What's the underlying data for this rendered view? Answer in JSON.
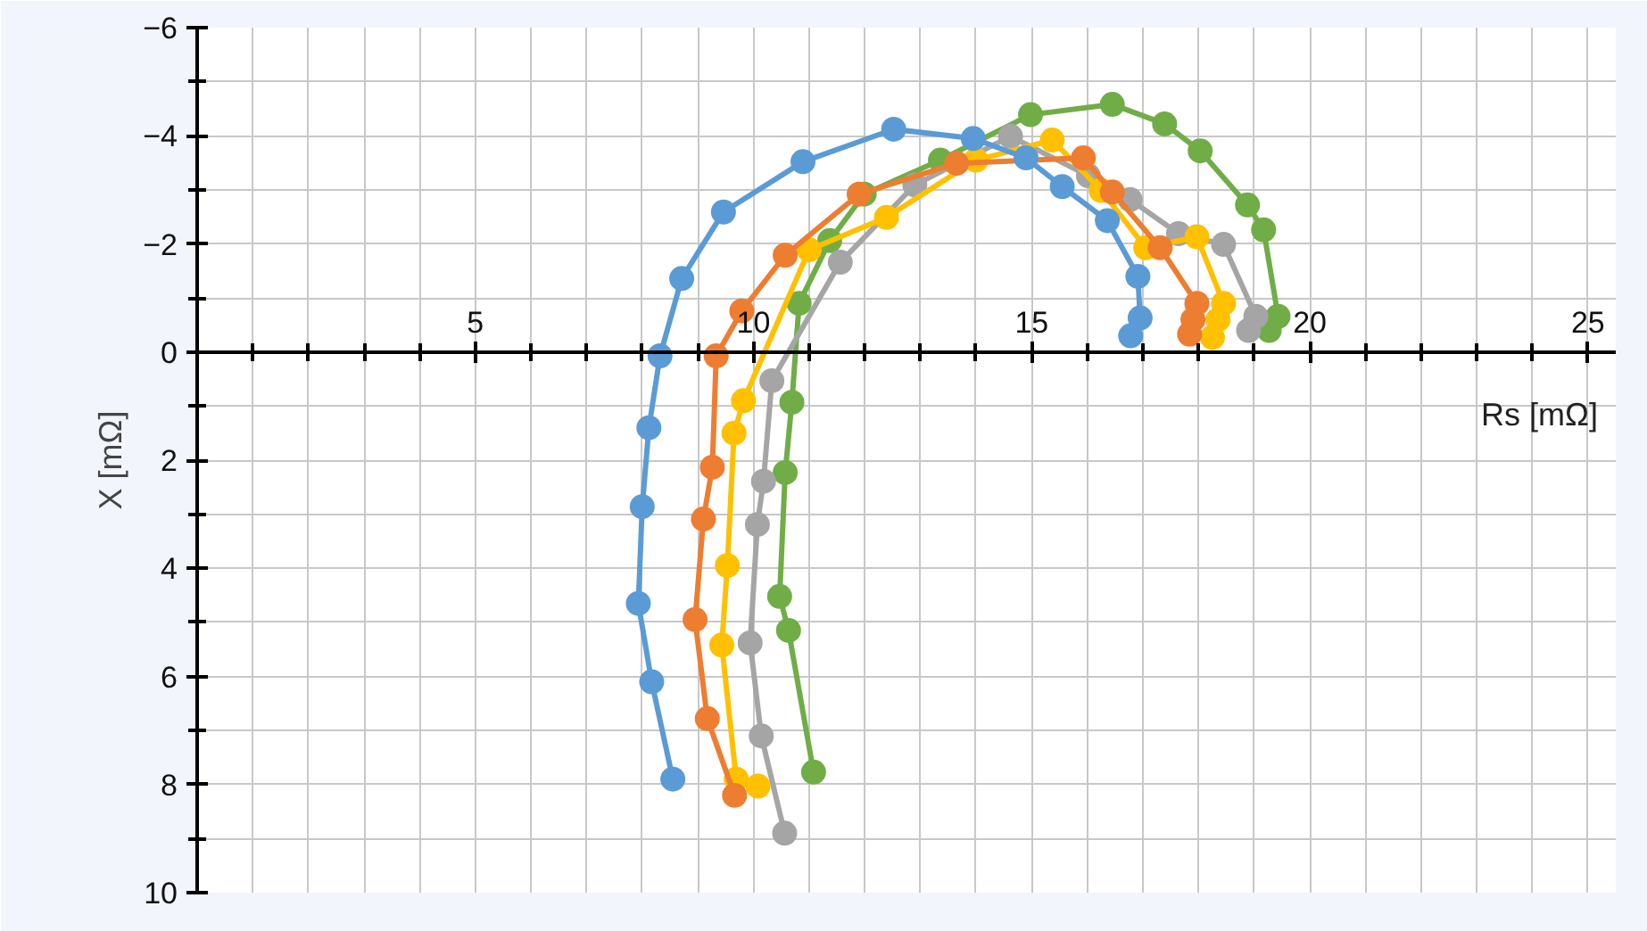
{
  "chart_data": {
    "type": "line",
    "xlabel": "Rs [mΩ]",
    "ylabel": "X [mΩ]",
    "xlim": [
      0,
      25.5
    ],
    "ylim": [
      10,
      -6
    ],
    "xticks": [
      5,
      10,
      15,
      20,
      25
    ],
    "yticks": [
      -6,
      -4,
      -2,
      0,
      2,
      4,
      6,
      8,
      10
    ],
    "grid": true,
    "marker": "circle",
    "line_style": "solid",
    "series": [
      {
        "color": "#5b9bd5",
        "x": [
          8.55,
          8.17,
          7.93,
          8.0,
          8.12,
          8.32,
          8.71,
          9.46,
          10.89,
          12.52,
          13.95,
          14.9,
          15.55,
          16.36,
          16.91,
          16.95,
          16.78
        ],
        "values": [
          7.9,
          6.1,
          4.65,
          2.86,
          1.4,
          0.07,
          -1.36,
          -2.59,
          -3.52,
          -4.12,
          -3.95,
          -3.59,
          -3.06,
          -2.43,
          -1.4,
          -0.63,
          -0.3
        ]
      },
      {
        "color": "#ed7d31",
        "x": [
          9.66,
          9.17,
          8.95,
          9.1,
          9.26,
          9.33,
          9.79,
          10.57,
          11.9,
          13.65,
          15.93,
          16.45,
          17.31,
          17.97,
          17.9,
          17.84
        ],
        "values": [
          8.2,
          6.78,
          4.95,
          3.09,
          2.13,
          0.07,
          -0.76,
          -1.79,
          -2.92,
          -3.49,
          -3.59,
          -2.96,
          -1.93,
          -0.9,
          -0.6,
          -0.33
        ]
      },
      {
        "color": "#ffc000",
        "x": [
          10.08,
          9.69,
          9.43,
          9.53,
          9.65,
          9.82,
          11.0,
          12.39,
          14.0,
          15.37,
          16.25,
          17.05,
          17.97,
          18.45,
          18.35,
          18.25
        ],
        "values": [
          8.03,
          7.9,
          5.42,
          3.95,
          1.5,
          0.9,
          -1.89,
          -2.49,
          -3.55,
          -3.92,
          -2.99,
          -1.93,
          -2.13,
          -0.9,
          -0.6,
          -0.27
        ]
      },
      {
        "color": "#a5a5a5",
        "x": [
          10.56,
          10.14,
          9.94,
          10.07,
          10.18,
          10.33,
          11.56,
          12.9,
          14.62,
          16.02,
          16.77,
          17.64,
          18.45,
          19.03,
          18.9
        ],
        "values": [
          8.9,
          7.1,
          5.38,
          3.19,
          2.39,
          0.53,
          -1.66,
          -3.09,
          -3.99,
          -3.26,
          -2.82,
          -2.19,
          -1.99,
          -0.66,
          -0.4
        ]
      },
      {
        "color": "#70ad47",
        "x": [
          11.08,
          10.63,
          10.47,
          10.57,
          10.69,
          10.82,
          11.37,
          11.99,
          13.36,
          14.98,
          16.45,
          17.39,
          18.03,
          18.88,
          19.17,
          19.43,
          19.27
        ],
        "values": [
          7.77,
          5.15,
          4.52,
          2.23,
          0.93,
          -0.9,
          -2.06,
          -2.92,
          -3.55,
          -4.39,
          -4.58,
          -4.22,
          -3.72,
          -2.72,
          -2.26,
          -0.66,
          -0.4
        ]
      }
    ]
  }
}
